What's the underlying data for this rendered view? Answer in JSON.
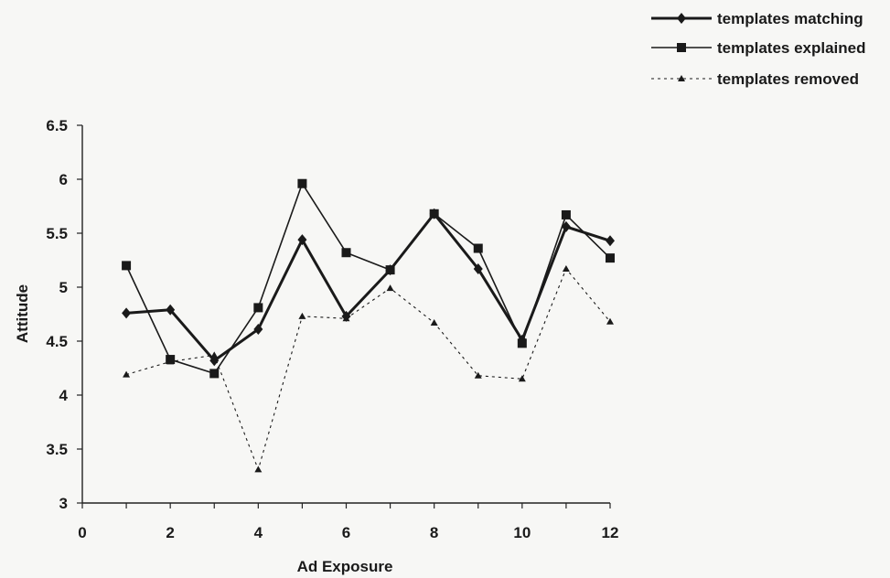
{
  "chart_data": {
    "type": "line",
    "title": "",
    "xlabel": "Ad Exposure",
    "ylabel": "Attitude",
    "xlim": [
      0,
      12
    ],
    "ylim": [
      3,
      6.5
    ],
    "xticks": [
      0,
      2,
      4,
      6,
      8,
      10,
      12
    ],
    "yticks": [
      3,
      3.5,
      4,
      4.5,
      5,
      5.5,
      6,
      6.5
    ],
    "ytick_labels": [
      "3",
      "3.5",
      "4",
      "4.5",
      "5",
      "5.5",
      "6",
      "6.5"
    ],
    "grid": false,
    "legend_position": "top-right",
    "series": [
      {
        "name": "templates matching",
        "marker": "diamond",
        "line": "thick-solid",
        "color": "#1a1a1a",
        "x": [
          1,
          2,
          3,
          4,
          5,
          6,
          7,
          8,
          9,
          10,
          11,
          12
        ],
        "values": [
          4.76,
          4.79,
          4.32,
          4.61,
          5.44,
          4.73,
          5.16,
          5.68,
          5.17,
          4.51,
          5.56,
          5.43
        ]
      },
      {
        "name": "templates explained",
        "marker": "square",
        "line": "solid",
        "color": "#1a1a1a",
        "x": [
          1,
          2,
          3,
          4,
          5,
          6,
          7,
          8,
          9,
          10,
          11,
          12
        ],
        "values": [
          5.2,
          4.33,
          4.2,
          4.81,
          5.96,
          5.32,
          5.16,
          5.68,
          5.36,
          4.48,
          5.67,
          5.27
        ]
      },
      {
        "name": "templates removed",
        "marker": "triangle",
        "line": "dashed",
        "color": "#1a1a1a",
        "x": [
          1,
          2,
          3,
          4,
          5,
          6,
          7,
          8,
          9,
          10,
          11,
          12
        ],
        "values": [
          4.19,
          4.31,
          4.37,
          3.31,
          4.73,
          4.71,
          4.99,
          4.67,
          4.18,
          4.15,
          5.17,
          4.68
        ]
      }
    ]
  }
}
